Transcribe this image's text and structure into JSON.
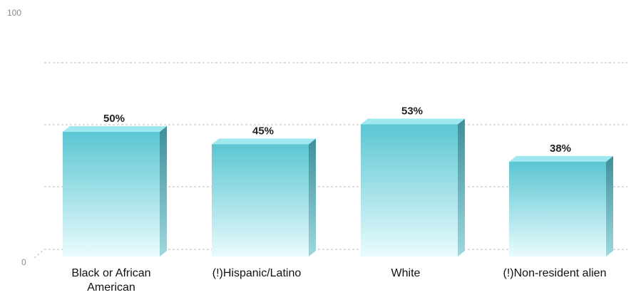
{
  "chart_data": {
    "type": "bar",
    "categories": [
      [
        "Black or African",
        "American"
      ],
      [
        "(!)Hispanic/Latino"
      ],
      [
        "White"
      ],
      [
        "(!)Non-resident alien"
      ]
    ],
    "values": [
      50,
      45,
      53,
      38
    ],
    "data_labels": [
      "50%",
      "45%",
      "53%",
      "38%"
    ],
    "ylim": [
      0,
      100
    ],
    "yticks": [
      "0",
      "100"
    ],
    "gridlines": [
      25,
      50,
      75
    ],
    "grid": true,
    "bar_style": "3d",
    "colors": {
      "bar_top": "#5bc6d2",
      "bar_bottom": "#e9fbfd",
      "bar_cap": "#9fe8ef",
      "bar_side": "#3d8f99",
      "grid": "#bbbbbb"
    }
  }
}
